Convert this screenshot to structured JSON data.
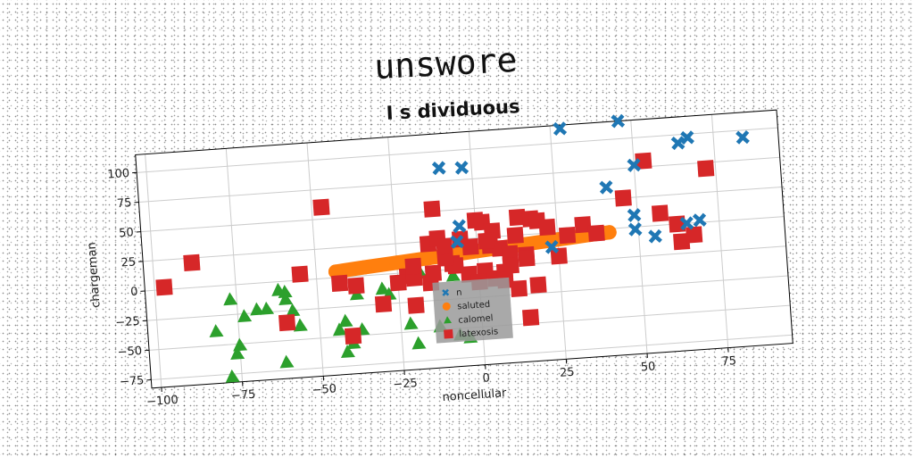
{
  "chart_data": {
    "type": "scatter",
    "title": "unswore",
    "subtitle": "I s dividuous",
    "xlabel": "noncellular",
    "ylabel": "chargeman",
    "xlim": [
      -103,
      95
    ],
    "ylim": [
      -82,
      115
    ],
    "xticks": [
      -100,
      -75,
      -50,
      -25,
      0,
      25,
      50,
      75
    ],
    "yticks": [
      -75,
      -50,
      -25,
      0,
      25,
      50,
      75,
      100
    ],
    "grid": true,
    "legend_position": "lower-center",
    "rotation_deg": -4,
    "series": [
      {
        "name": "n",
        "marker": "x",
        "color": "#1f77b4",
        "points": [
          [
            28,
            112
          ],
          [
            46,
            115
          ],
          [
            67,
            97
          ],
          [
            64,
            93
          ],
          [
            84,
            94
          ],
          [
            -10,
            86
          ],
          [
            -3,
            85
          ],
          [
            50,
            77
          ],
          [
            41,
            60
          ],
          [
            -5,
            36
          ],
          [
            49,
            35
          ],
          [
            65,
            25
          ],
          [
            69,
            27
          ],
          [
            49,
            23
          ],
          [
            55,
            16
          ],
          [
            23,
            13
          ],
          [
            -6,
            23
          ]
        ]
      },
      {
        "name": "saluted",
        "marker": "line",
        "color": "#ff7f0e",
        "points": [
          [
            -44,
            5
          ],
          [
            -35,
            7
          ],
          [
            -25,
            9
          ],
          [
            -15,
            11
          ],
          [
            -5,
            13
          ],
          [
            5,
            15
          ],
          [
            15,
            17
          ],
          [
            25,
            19
          ],
          [
            35,
            21
          ],
          [
            41,
            22
          ]
        ]
      },
      {
        "name": "calomel",
        "marker": "^",
        "color": "#2ca02c",
        "points": [
          [
            -82,
            -38
          ],
          [
            -77,
            -12
          ],
          [
            -73,
            -27
          ],
          [
            -69,
            -22
          ],
          [
            -66,
            -22
          ],
          [
            -62,
            -7
          ],
          [
            -60,
            -9
          ],
          [
            -60,
            -15
          ],
          [
            -58,
            -25
          ],
          [
            -56,
            -38
          ],
          [
            -76,
            -58
          ],
          [
            -75,
            -51
          ],
          [
            -78,
            -77
          ],
          [
            -61,
            -68
          ],
          [
            -44,
            -44
          ],
          [
            -42,
            -37
          ],
          [
            -42,
            -63
          ],
          [
            -40,
            -56
          ],
          [
            -38,
            -15
          ],
          [
            -37,
            -45
          ],
          [
            -30,
            -12
          ],
          [
            -28,
            -17
          ],
          [
            -22,
            -43
          ],
          [
            -20,
            -60
          ],
          [
            -13,
            -47
          ],
          [
            -8,
            -5
          ],
          [
            -7,
            -55
          ],
          [
            -4,
            -58
          ],
          [
            -18,
            -1
          ]
        ]
      },
      {
        "name": "latexosis",
        "marker": "s",
        "color": "#d62728",
        "points": [
          [
            -97,
            2
          ],
          [
            -88,
            21
          ],
          [
            -55,
            5
          ],
          [
            -47,
            60
          ],
          [
            -60,
            -35
          ],
          [
            -43,
            -5
          ],
          [
            -38,
            -8
          ],
          [
            -30,
            -25
          ],
          [
            -40,
            -50
          ],
          [
            -22,
            -3
          ],
          [
            -20,
            -5
          ],
          [
            -15,
            23
          ],
          [
            -12,
            27
          ],
          [
            -13,
            52
          ],
          [
            -8,
            5
          ],
          [
            -5,
            25
          ],
          [
            -2,
            18
          ],
          [
            0,
            40
          ],
          [
            2,
            38
          ],
          [
            4,
            18
          ],
          [
            7,
            15
          ],
          [
            10,
            10
          ],
          [
            12,
            25
          ],
          [
            13,
            40
          ],
          [
            15,
            8
          ],
          [
            17,
            38
          ],
          [
            19,
            36
          ],
          [
            8,
            -5
          ],
          [
            10,
            0
          ],
          [
            15,
            5
          ],
          [
            5,
            -10
          ],
          [
            2,
            -3
          ],
          [
            -7,
            3
          ],
          [
            -10,
            10
          ],
          [
            -20,
            5
          ],
          [
            -25,
            -8
          ],
          [
            -15,
            -10
          ],
          [
            8,
            -12
          ],
          [
            12,
            -20
          ],
          [
            18,
            -18
          ],
          [
            15,
            -45
          ],
          [
            25,
            5
          ],
          [
            33,
            30
          ],
          [
            37,
            22
          ],
          [
            46,
            50
          ],
          [
            53,
            80
          ],
          [
            57,
            35
          ],
          [
            62,
            25
          ],
          [
            63,
            10
          ],
          [
            67,
            15
          ],
          [
            72,
            70
          ],
          [
            -10,
            20
          ],
          [
            22,
            30
          ],
          [
            5,
            30
          ],
          [
            -3,
            -5
          ],
          [
            0,
            -12
          ],
          [
            3,
            22
          ],
          [
            -14,
            -2
          ],
          [
            28,
            22
          ],
          [
            -20,
            -28
          ]
        ]
      }
    ]
  },
  "colors": {
    "background": "#ffffff",
    "plot_background": "#ffffff",
    "grid": "#cccccc",
    "axis": "#000000",
    "legend_background": "#9a9a9a"
  }
}
